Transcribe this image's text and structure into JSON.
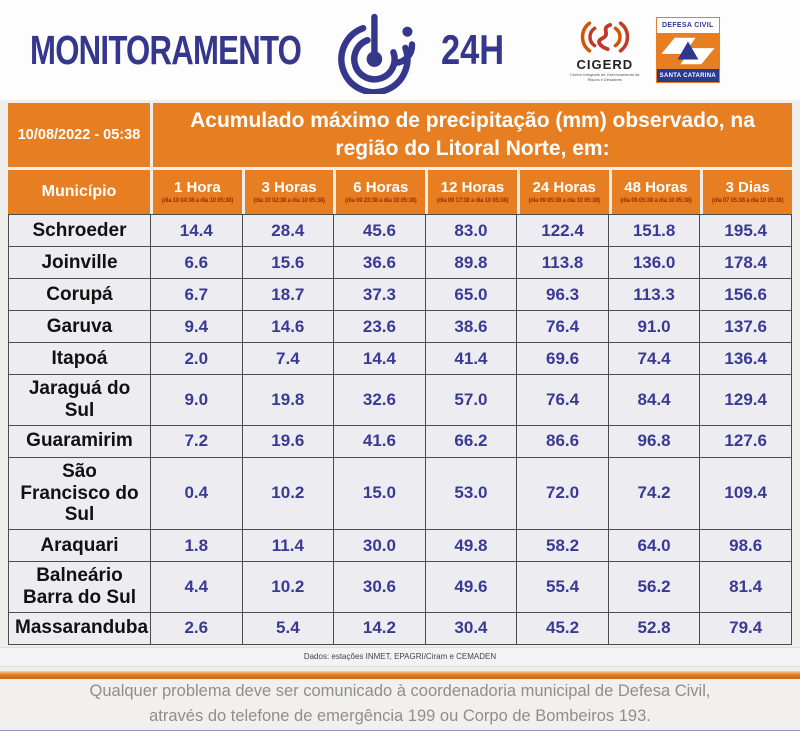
{
  "header": {
    "title": "MONITORAMENTO",
    "hours_label": "24H",
    "cigerd": {
      "name": "CIGERD",
      "subtitle": "Centro Integrado de Gerenciamento de Riscos e Desastres"
    },
    "defesa_civil": {
      "top": "DEFESA CIVIL",
      "bottom": "SANTA CATARINA"
    }
  },
  "table": {
    "datetime": "10/08/2022 - 05:38",
    "title": "Acumulado máximo de precipitação (mm) observado, na região do Litoral Norte, em:",
    "municipio_header": "Município",
    "columns": [
      {
        "label": "1 Hora",
        "range": "(dia 10 04:38 a dia 10 05:38)"
      },
      {
        "label": "3 Horas",
        "range": "(dia 10 02:38 a dia 10 05:38)"
      },
      {
        "label": "6 Horas",
        "range": "(dia 09 23:38 a dia 10 05:38)"
      },
      {
        "label": "12 Horas",
        "range": "(dia 09 17:38 a dia 10 05:38)"
      },
      {
        "label": "24 Horas",
        "range": "(dia 09 05:38 a dia 10 05:38)"
      },
      {
        "label": "48 Horas",
        "range": "(dia 08 05:38 a dia 10 05:38)"
      },
      {
        "label": "3 Dias",
        "range": "(dia 07 05:38 a dia 10 05:38)"
      }
    ],
    "rows": [
      {
        "municipio": "Schroeder",
        "values": [
          "14.4",
          "28.4",
          "45.6",
          "83.0",
          "122.4",
          "151.8",
          "195.4"
        ]
      },
      {
        "municipio": "Joinville",
        "values": [
          "6.6",
          "15.6",
          "36.6",
          "89.8",
          "113.8",
          "136.0",
          "178.4"
        ]
      },
      {
        "municipio": "Corupá",
        "values": [
          "6.7",
          "18.7",
          "37.3",
          "65.0",
          "96.3",
          "113.3",
          "156.6"
        ]
      },
      {
        "municipio": "Garuva",
        "values": [
          "9.4",
          "14.6",
          "23.6",
          "38.6",
          "76.4",
          "91.0",
          "137.6"
        ]
      },
      {
        "municipio": "Itapoá",
        "values": [
          "2.0",
          "7.4",
          "14.4",
          "41.4",
          "69.6",
          "74.4",
          "136.4"
        ]
      },
      {
        "municipio": "Jaraguá do Sul",
        "values": [
          "9.0",
          "19.8",
          "32.6",
          "57.0",
          "76.4",
          "84.4",
          "129.4"
        ]
      },
      {
        "municipio": "Guaramirim",
        "values": [
          "7.2",
          "19.6",
          "41.6",
          "66.2",
          "86.6",
          "96.8",
          "127.6"
        ]
      },
      {
        "municipio": "São Francisco do Sul",
        "values": [
          "0.4",
          "10.2",
          "15.0",
          "53.0",
          "72.0",
          "74.2",
          "109.4"
        ]
      },
      {
        "municipio": "Araquari",
        "values": [
          "1.8",
          "11.4",
          "30.0",
          "49.8",
          "58.2",
          "64.0",
          "98.6"
        ]
      },
      {
        "municipio": "Balneário Barra do Sul",
        "values": [
          "4.4",
          "10.2",
          "30.6",
          "49.6",
          "55.4",
          "56.2",
          "81.4"
        ]
      },
      {
        "municipio": "Massaranduba",
        "values": [
          "2.6",
          "5.4",
          "14.2",
          "30.4",
          "45.2",
          "52.8",
          "79.4"
        ]
      }
    ],
    "source": "Dados: estações INMET, EPAGRI/Ciram e CEMADEN"
  },
  "footer": {
    "notice_line1": "Qualquer problema deve ser comunicado à coordenadoria municipal de Defesa Civil,",
    "notice_line2": "através do telefone de emergência 199 ou Corpo de Bombeiros 193."
  },
  "colors": {
    "navy": "#34378c",
    "navy_dark": "#2e3192",
    "orange": "#e87e22",
    "darkred": "#9c2f00",
    "value_navy": "#3a3a94",
    "dc_blue": "#2b3990",
    "cigerd_red": "#c0392b",
    "cigerd_orange": "#d35400"
  }
}
